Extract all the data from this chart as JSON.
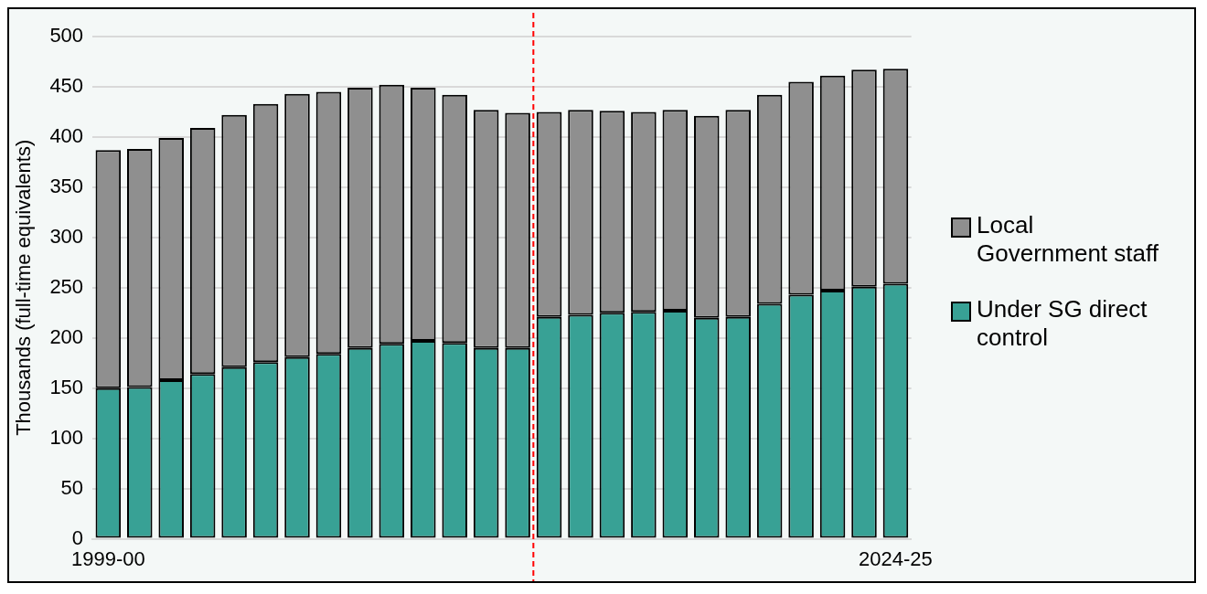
{
  "chart_data": {
    "type": "bar",
    "stacked": true,
    "ylabel": "Thousands (full-time equivalents)",
    "categories": [
      "1999-00",
      null,
      null,
      null,
      null,
      null,
      null,
      null,
      null,
      null,
      null,
      null,
      null,
      null,
      null,
      null,
      null,
      null,
      null,
      null,
      null,
      null,
      null,
      null,
      null,
      "2024-25"
    ],
    "series": [
      {
        "name": "Under SG direct control",
        "color": "#38a195",
        "values": [
          150,
          151,
          158,
          164,
          171,
          176,
          181,
          184,
          190,
          194,
          197,
          195,
          190,
          190,
          221,
          223,
          225,
          226,
          227,
          220,
          221,
          234,
          243,
          247,
          251,
          254
        ]
      },
      {
        "name": "Local Government staff",
        "color": "#8f8f8f",
        "values": [
          237,
          237,
          241,
          245,
          251,
          257,
          262,
          261,
          259,
          258,
          252,
          247,
          237,
          234,
          204,
          204,
          201,
          199,
          200,
          201,
          206,
          208,
          212,
          214,
          216,
          214
        ]
      }
    ],
    "ylim": [
      0,
      500
    ],
    "yticks": [
      0,
      50,
      100,
      150,
      200,
      250,
      300,
      350,
      400,
      450,
      500
    ],
    "grid": "y",
    "legend": "right"
  }
}
